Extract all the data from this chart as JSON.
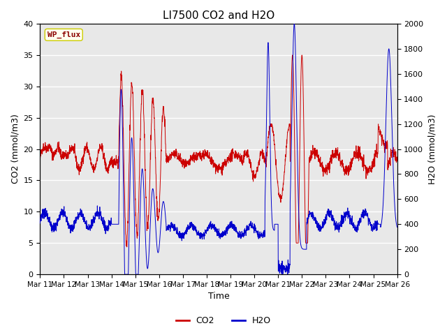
{
  "title": "LI7500 CO2 and H2O",
  "xlabel": "Time",
  "ylabel_left": "CO2 (mmol/m3)",
  "ylabel_right": "H2O (mmol/m3)",
  "ylim_left": [
    0,
    40
  ],
  "ylim_right": [
    0,
    2000
  ],
  "yticks_left": [
    0,
    5,
    10,
    15,
    20,
    25,
    30,
    35,
    40
  ],
  "yticks_right": [
    0,
    200,
    400,
    600,
    800,
    1000,
    1200,
    1400,
    1600,
    1800,
    2000
  ],
  "co2_color": "#CC0000",
  "h2o_color": "#0000CC",
  "fig_bg_color": "#FFFFFF",
  "plot_bg_color": "#E8E8E8",
  "legend_label_co2": "CO2",
  "legend_label_h2o": "H2O",
  "watermark": "WP_flux",
  "watermark_color": "#8B0000",
  "watermark_bg": "#FFFFF0",
  "grid_color": "#FFFFFF",
  "title_fontsize": 11,
  "axis_fontsize": 9,
  "tick_fontsize": 8,
  "legend_fontsize": 9
}
